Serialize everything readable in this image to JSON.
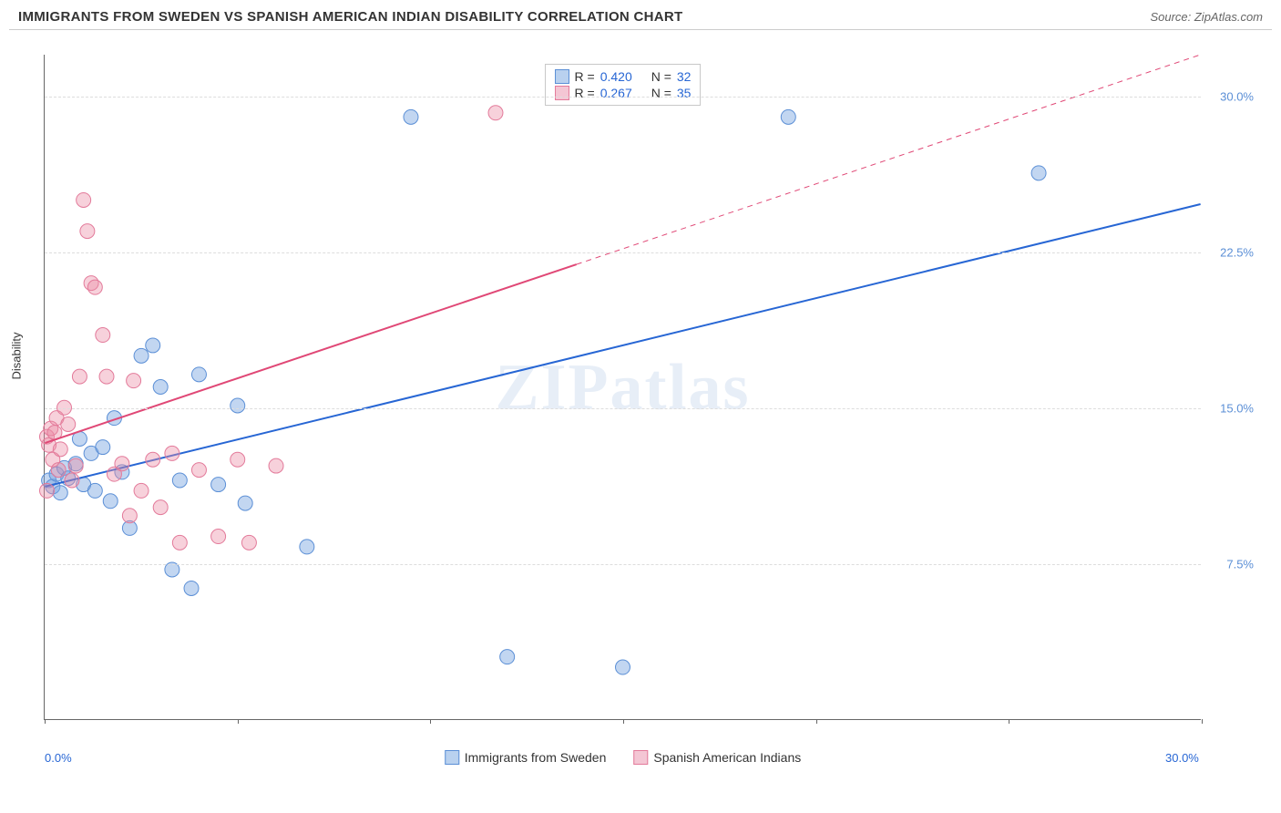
{
  "header": {
    "title": "IMMIGRANTS FROM SWEDEN VS SPANISH AMERICAN INDIAN DISABILITY CORRELATION CHART",
    "source": "Source: ZipAtlas.com"
  },
  "watermark": "ZIPatlas",
  "chart": {
    "type": "scatter",
    "ylabel": "Disability",
    "xlim": [
      0,
      30
    ],
    "ylim": [
      0,
      32
    ],
    "x_ticks": [
      {
        "pos": 0,
        "label": "0.0%",
        "color": "#2766d4"
      },
      {
        "pos": 30,
        "label": "30.0%",
        "color": "#2766d4"
      }
    ],
    "x_tick_marks": [
      0,
      5,
      10,
      15,
      20,
      25,
      30
    ],
    "y_ticks": [
      {
        "pos": 7.5,
        "label": "7.5%",
        "color": "#5b8fd6"
      },
      {
        "pos": 15.0,
        "label": "15.0%",
        "color": "#5b8fd6"
      },
      {
        "pos": 22.5,
        "label": "22.5%",
        "color": "#5b8fd6"
      },
      {
        "pos": 30.0,
        "label": "30.0%",
        "color": "#5b8fd6"
      }
    ],
    "grid_color": "#dddddd",
    "background_color": "#ffffff",
    "series": [
      {
        "name": "Immigrants from Sweden",
        "marker_color_fill": "rgba(120,165,225,0.45)",
        "marker_color_stroke": "#5b8fd6",
        "line_color": "#2766d4",
        "line_width": 2,
        "marker_radius": 8,
        "R": "0.420",
        "N": "32",
        "swatch_fill": "#b9d1ef",
        "swatch_border": "#5b8fd6",
        "points": [
          [
            0.1,
            11.5
          ],
          [
            0.2,
            11.2
          ],
          [
            0.3,
            11.8
          ],
          [
            0.5,
            12.1
          ],
          [
            0.4,
            10.9
          ],
          [
            0.6,
            11.6
          ],
          [
            0.8,
            12.3
          ],
          [
            1.0,
            11.3
          ],
          [
            1.2,
            12.8
          ],
          [
            1.3,
            11.0
          ],
          [
            1.5,
            13.1
          ],
          [
            1.7,
            10.5
          ],
          [
            2.0,
            11.9
          ],
          [
            2.2,
            9.2
          ],
          [
            2.5,
            17.5
          ],
          [
            2.8,
            18.0
          ],
          [
            3.0,
            16.0
          ],
          [
            3.3,
            7.2
          ],
          [
            3.5,
            11.5
          ],
          [
            3.8,
            6.3
          ],
          [
            4.0,
            16.6
          ],
          [
            4.5,
            11.3
          ],
          [
            5.0,
            15.1
          ],
          [
            5.2,
            10.4
          ],
          [
            6.8,
            8.3
          ],
          [
            9.5,
            29.0
          ],
          [
            12.0,
            3.0
          ],
          [
            15.0,
            2.5
          ],
          [
            19.3,
            29.0
          ],
          [
            25.8,
            26.3
          ],
          [
            1.8,
            14.5
          ],
          [
            0.9,
            13.5
          ]
        ],
        "trend": {
          "x1": 0,
          "y1": 11.2,
          "x2": 30,
          "y2": 24.8,
          "solid_until_x": 30
        }
      },
      {
        "name": "Spanish American Indians",
        "marker_color_fill": "rgba(235,140,165,0.40)",
        "marker_color_stroke": "#e37a9a",
        "line_color": "#e04876",
        "line_width": 2,
        "marker_radius": 8,
        "R": "0.267",
        "N": "35",
        "swatch_fill": "#f4c6d4",
        "swatch_border": "#e37a9a",
        "points": [
          [
            0.05,
            13.6
          ],
          [
            0.1,
            13.2
          ],
          [
            0.15,
            14.0
          ],
          [
            0.2,
            12.5
          ],
          [
            0.25,
            13.8
          ],
          [
            0.3,
            14.5
          ],
          [
            0.35,
            12.0
          ],
          [
            0.4,
            13.0
          ],
          [
            0.5,
            15.0
          ],
          [
            0.6,
            14.2
          ],
          [
            0.7,
            11.5
          ],
          [
            0.8,
            12.2
          ],
          [
            0.9,
            16.5
          ],
          [
            1.0,
            25.0
          ],
          [
            1.1,
            23.5
          ],
          [
            1.2,
            21.0
          ],
          [
            1.3,
            20.8
          ],
          [
            1.5,
            18.5
          ],
          [
            1.6,
            16.5
          ],
          [
            1.8,
            11.8
          ],
          [
            2.0,
            12.3
          ],
          [
            2.2,
            9.8
          ],
          [
            2.3,
            16.3
          ],
          [
            2.5,
            11.0
          ],
          [
            2.8,
            12.5
          ],
          [
            3.0,
            10.2
          ],
          [
            3.3,
            12.8
          ],
          [
            3.5,
            8.5
          ],
          [
            4.0,
            12.0
          ],
          [
            4.5,
            8.8
          ],
          [
            5.0,
            12.5
          ],
          [
            5.3,
            8.5
          ],
          [
            6.0,
            12.2
          ],
          [
            11.7,
            29.2
          ],
          [
            0.05,
            11.0
          ]
        ],
        "trend": {
          "x1": 0,
          "y1": 13.3,
          "x2": 30,
          "y2": 32.0,
          "solid_until_x": 13.8
        }
      }
    ],
    "legend_top": {
      "R_label": "R =",
      "N_label": "N =",
      "value_color": "#2766d4",
      "text_color": "#333333"
    },
    "legend_bottom_labels": [
      "Immigrants from Sweden",
      "Spanish American Indians"
    ]
  }
}
